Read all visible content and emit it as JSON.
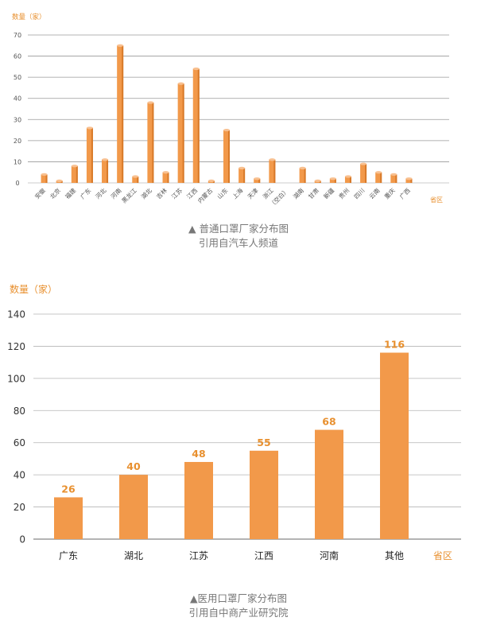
{
  "colors": {
    "bar": "#f2994a",
    "bar_top": "#f8c090",
    "bar_side": "#d87a2a",
    "accent": "#e8902f",
    "axis_text": "#555555",
    "grid": "#9a9a9a",
    "caption": "#777777"
  },
  "chart_data": [
    {
      "type": "bar",
      "ylabel": "数量（家）",
      "xlabel": "省区",
      "ylim": [
        0,
        70
      ],
      "yticks": [
        0,
        10,
        20,
        30,
        40,
        50,
        60,
        70
      ],
      "categories": [
        "安徽",
        "北京",
        "福建",
        "广东",
        "河北",
        "河南",
        "黑龙江",
        "湖北",
        "吉林",
        "江苏",
        "江西",
        "内蒙古",
        "山东",
        "上海",
        "天津",
        "浙江",
        "（空白）",
        "湖南",
        "甘肃",
        "新疆",
        "贵州",
        "四川",
        "云南",
        "重庆",
        "广西"
      ],
      "values": [
        4,
        1,
        8,
        26,
        11,
        65,
        3,
        38,
        5,
        47,
        54,
        1,
        25,
        7,
        2,
        11,
        0,
        7,
        1,
        2,
        3,
        9,
        5,
        4,
        2
      ],
      "style": "3d-cylinder",
      "grid": true
    },
    {
      "type": "bar",
      "ylabel": "数量（家）",
      "xlabel": "省区",
      "ylim": [
        0,
        140
      ],
      "yticks": [
        0,
        20,
        40,
        60,
        80,
        100,
        120,
        140
      ],
      "categories": [
        "广东",
        "湖北",
        "江苏",
        "江西",
        "河南",
        "其他"
      ],
      "values": [
        26,
        40,
        48,
        55,
        68,
        116
      ],
      "data_labels": [
        "26",
        "40",
        "48",
        "55",
        "68",
        "116"
      ],
      "grid": true
    }
  ],
  "captions": [
    {
      "line1": "▲ 普通口罩厂家分布图",
      "line2": "引用自汽车人频道"
    },
    {
      "line1": "▲医用口罩厂家分布图",
      "line2": "引用自中商产业研究院"
    }
  ]
}
